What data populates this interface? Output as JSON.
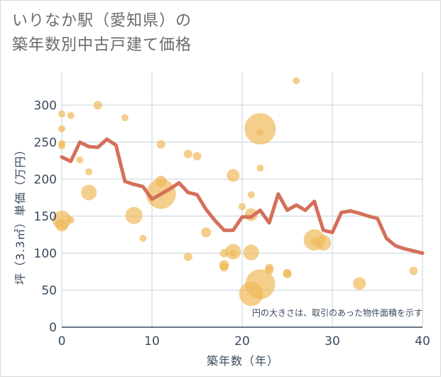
{
  "chart_data": {
    "type": "scatter",
    "title": [
      "いりなか駅（愛知県）の",
      "築年数別中古戸建て価格"
    ],
    "xlabel": "築年数（年）",
    "ylabel": "坪（3.3㎡）単価（万円）",
    "note": "円の大きさは、取引のあった物件面積を示す",
    "xlim": [
      0,
      40
    ],
    "ylim": [
      0,
      345
    ],
    "xticks": [
      0,
      10,
      20,
      30,
      40
    ],
    "yticks": [
      0,
      50,
      100,
      150,
      200,
      250,
      300
    ],
    "grid": true,
    "colors": {
      "bubble": "#efb95a",
      "line": "#d4705a",
      "grid": "#c5d0da",
      "text": "#3a4a5e"
    },
    "bubbles": [
      {
        "x": 0,
        "y": 288,
        "r": 5
      },
      {
        "x": 0,
        "y": 268,
        "r": 5
      },
      {
        "x": 0,
        "y": 248,
        "r": 5
      },
      {
        "x": 0,
        "y": 245,
        "r": 5
      },
      {
        "x": 0,
        "y": 145,
        "r": 13
      },
      {
        "x": 0,
        "y": 138,
        "r": 9
      },
      {
        "x": 1,
        "y": 286,
        "r": 5
      },
      {
        "x": 1,
        "y": 145,
        "r": 5
      },
      {
        "x": 2,
        "y": 226,
        "r": 5
      },
      {
        "x": 3,
        "y": 210,
        "r": 5
      },
      {
        "x": 3,
        "y": 182,
        "r": 11
      },
      {
        "x": 4,
        "y": 300,
        "r": 6
      },
      {
        "x": 7,
        "y": 283,
        "r": 5
      },
      {
        "x": 8,
        "y": 151,
        "r": 12
      },
      {
        "x": 9,
        "y": 120,
        "r": 5
      },
      {
        "x": 11,
        "y": 247,
        "r": 6
      },
      {
        "x": 11,
        "y": 197,
        "r": 8
      },
      {
        "x": 11,
        "y": 180,
        "r": 21
      },
      {
        "x": 14,
        "y": 234,
        "r": 6
      },
      {
        "x": 14,
        "y": 95,
        "r": 6
      },
      {
        "x": 15,
        "y": 231,
        "r": 6
      },
      {
        "x": 16,
        "y": 128,
        "r": 7
      },
      {
        "x": 18,
        "y": 100,
        "r": 6
      },
      {
        "x": 18,
        "y": 84,
        "r": 7
      },
      {
        "x": 18,
        "y": 81,
        "r": 6
      },
      {
        "x": 19,
        "y": 205,
        "r": 9
      },
      {
        "x": 19,
        "y": 102,
        "r": 11
      },
      {
        "x": 19,
        "y": 100,
        "r": 5
      },
      {
        "x": 20,
        "y": 163,
        "r": 5
      },
      {
        "x": 21,
        "y": 179,
        "r": 5
      },
      {
        "x": 21,
        "y": 152,
        "r": 9
      },
      {
        "x": 21,
        "y": 101,
        "r": 11
      },
      {
        "x": 21,
        "y": 45,
        "r": 17
      },
      {
        "x": 22,
        "y": 268,
        "r": 22
      },
      {
        "x": 22,
        "y": 263,
        "r": 5
      },
      {
        "x": 22,
        "y": 215,
        "r": 5
      },
      {
        "x": 22,
        "y": 58,
        "r": 21
      },
      {
        "x": 23,
        "y": 80,
        "r": 6
      },
      {
        "x": 23,
        "y": 77,
        "r": 6
      },
      {
        "x": 25,
        "y": 73,
        "r": 6
      },
      {
        "x": 25,
        "y": 72,
        "r": 6
      },
      {
        "x": 26,
        "y": 333,
        "r": 5
      },
      {
        "x": 28,
        "y": 118,
        "r": 15
      },
      {
        "x": 28,
        "y": 116,
        "r": 5
      },
      {
        "x": 29,
        "y": 114,
        "r": 11
      },
      {
        "x": 33,
        "y": 59,
        "r": 9
      },
      {
        "x": 39,
        "y": 76,
        "r": 6
      }
    ],
    "series": [
      {
        "x": [
          0,
          1,
          2,
          3,
          4,
          5,
          6,
          7,
          8,
          9,
          10,
          11,
          12,
          13,
          14,
          15,
          16,
          17,
          18,
          19,
          20,
          21,
          22,
          23,
          24,
          25,
          26,
          27,
          28,
          29,
          30,
          31,
          32,
          33,
          34,
          35,
          36,
          37,
          38,
          39,
          40
        ],
        "values": [
          230,
          224,
          250,
          244,
          243,
          254,
          246,
          197,
          193,
          190,
          173,
          180,
          187,
          195,
          182,
          179,
          159,
          144,
          131,
          131,
          149,
          149,
          158,
          141,
          180,
          158,
          165,
          158,
          170,
          131,
          128,
          155,
          157,
          154,
          150,
          147,
          120,
          110,
          106,
          103,
          100
        ]
      }
    ]
  }
}
